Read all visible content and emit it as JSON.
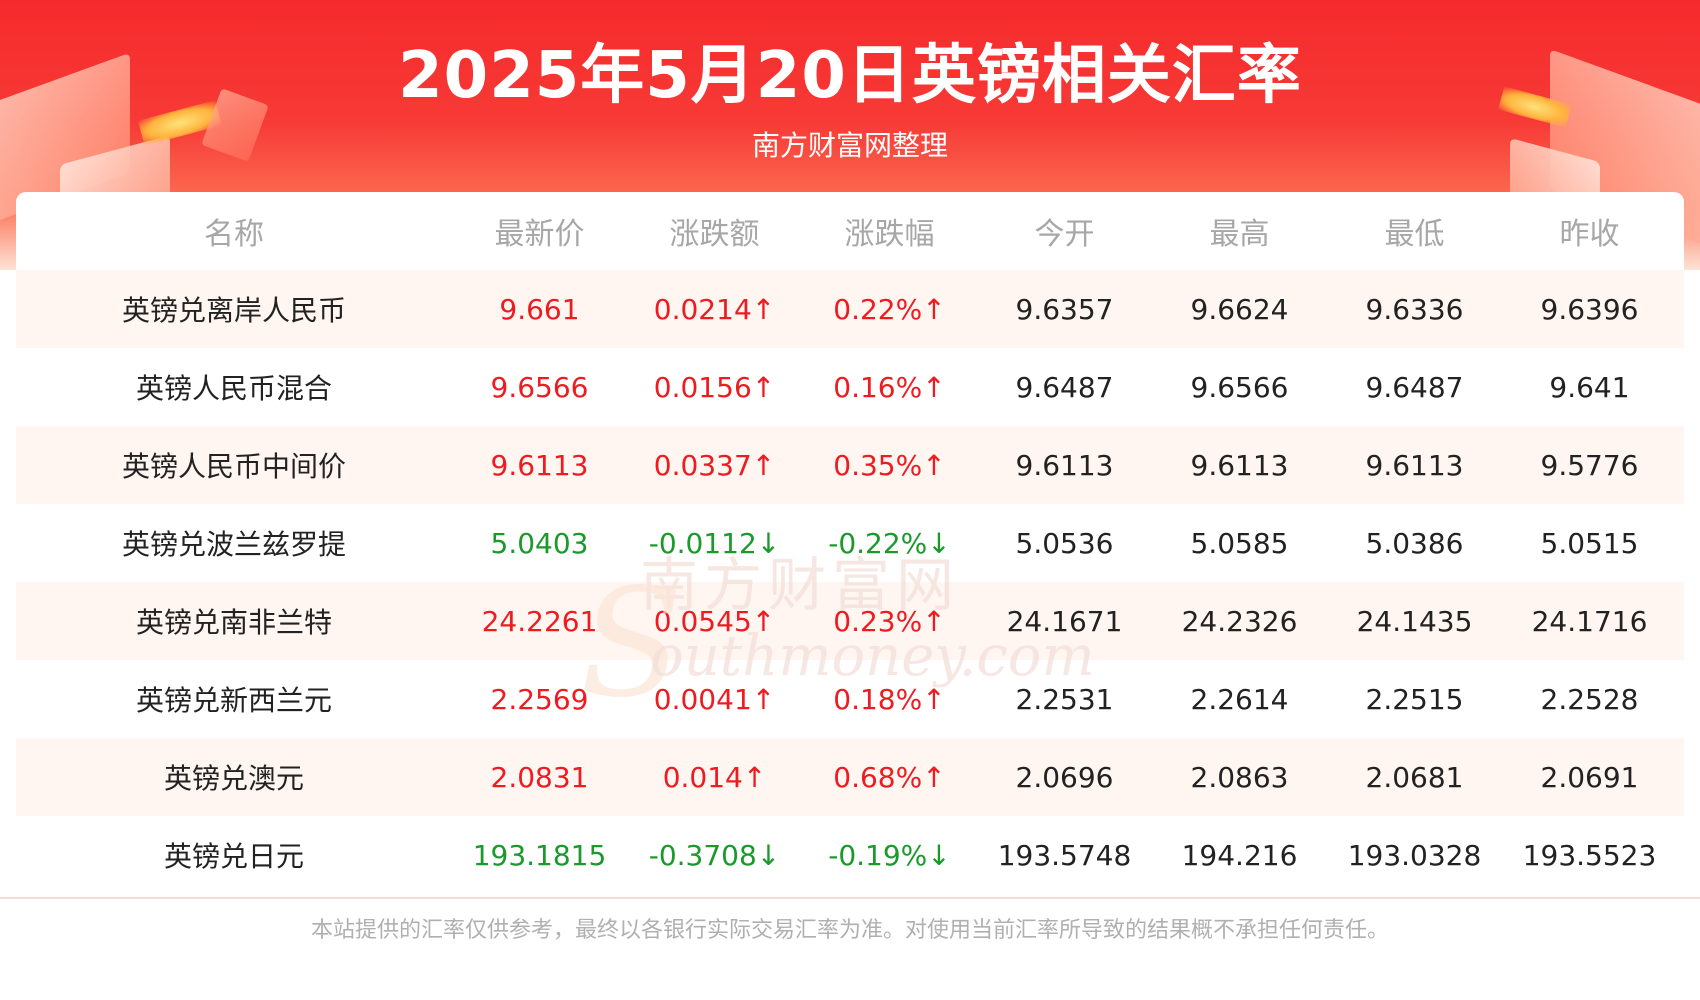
{
  "header": {
    "title": "2025年5月20日英镑相关汇率",
    "subtitle": "南方财富网整理"
  },
  "colors": {
    "up": "#ee1b21",
    "down": "#1a9a2a",
    "banner": "#f52a2c",
    "row_alt": "#fff5f1"
  },
  "table": {
    "columns": [
      "名称",
      "最新价",
      "涨跌额",
      "涨跌幅",
      "今开",
      "最高",
      "最低",
      "昨收"
    ],
    "rows": [
      {
        "name": "英镑兑离岸人民币",
        "latest": "9.661",
        "change": "0.0214↑",
        "pct": "0.22%↑",
        "open": "9.6357",
        "high": "9.6624",
        "low": "9.6336",
        "prev_close": "9.6396",
        "direction": "up"
      },
      {
        "name": "英镑人民币混合",
        "latest": "9.6566",
        "change": "0.0156↑",
        "pct": "0.16%↑",
        "open": "9.6487",
        "high": "9.6566",
        "low": "9.6487",
        "prev_close": "9.641",
        "direction": "up"
      },
      {
        "name": "英镑人民币中间价",
        "latest": "9.6113",
        "change": "0.0337↑",
        "pct": "0.35%↑",
        "open": "9.6113",
        "high": "9.6113",
        "low": "9.6113",
        "prev_close": "9.5776",
        "direction": "up"
      },
      {
        "name": "英镑兑波兰兹罗提",
        "latest": "5.0403",
        "change": "-0.0112↓",
        "pct": "-0.22%↓",
        "open": "5.0536",
        "high": "5.0585",
        "low": "5.0386",
        "prev_close": "5.0515",
        "direction": "down"
      },
      {
        "name": "英镑兑南非兰特",
        "latest": "24.2261",
        "change": "0.0545↑",
        "pct": "0.23%↑",
        "open": "24.1671",
        "high": "24.2326",
        "low": "24.1435",
        "prev_close": "24.1716",
        "direction": "up"
      },
      {
        "name": "英镑兑新西兰元",
        "latest": "2.2569",
        "change": "0.0041↑",
        "pct": "0.18%↑",
        "open": "2.2531",
        "high": "2.2614",
        "low": "2.2515",
        "prev_close": "2.2528",
        "direction": "up"
      },
      {
        "name": "英镑兑澳元",
        "latest": "2.0831",
        "change": "0.014↑",
        "pct": "0.68%↑",
        "open": "2.0696",
        "high": "2.0863",
        "low": "2.0681",
        "prev_close": "2.0691",
        "direction": "up"
      },
      {
        "name": "英镑兑日元",
        "latest": "193.1815",
        "change": "-0.3708↓",
        "pct": "-0.19%↓",
        "open": "193.5748",
        "high": "194.216",
        "low": "193.0328",
        "prev_close": "193.5523",
        "direction": "down"
      }
    ]
  },
  "watermark": {
    "cn": "南方财富网",
    "en": "outhmoney.com"
  },
  "footer": {
    "disclaimer": "本站提供的汇率仅供参考，最终以各银行实际交易汇率为准。对使用当前汇率所导致的结果概不承担任何责任。"
  }
}
